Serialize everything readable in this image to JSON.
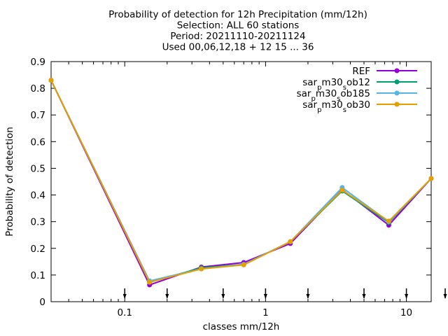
{
  "chart_data": {
    "type": "line",
    "title_lines": [
      "Probability of detection  for 12h Precipitation (mm/12h)",
      "Selection: ALL     60 stations",
      "Period: 20211110-20211124",
      "Used 00,06,12,18 + 12 15 ... 36"
    ],
    "xlabel": "classes mm/12h",
    "ylabel": "Probability of detection",
    "x_scale": "log",
    "xlim": [
      0.03,
      15
    ],
    "ylim": [
      0,
      0.9
    ],
    "x_ticks": [
      0.1,
      1,
      10
    ],
    "x_tick_labels": [
      "0.1",
      "1",
      "10"
    ],
    "y_ticks": [
      0,
      0.1,
      0.2,
      0.3,
      0.4,
      0.5,
      0.6,
      0.7,
      0.8,
      0.9
    ],
    "y_tick_labels": [
      "0",
      "0.1",
      "0.2",
      "0.3",
      "0.4",
      "0.5",
      "0.6",
      "0.7",
      "0.8",
      "0.9"
    ],
    "grid": false,
    "legend_position": "top-right",
    "x": [
      0.03,
      0.15,
      0.35,
      0.7,
      1.5,
      3.5,
      7.5,
      15
    ],
    "series": [
      {
        "name": "REF",
        "legend_parts": [
          {
            "t": "REF",
            "s": false
          }
        ],
        "color": "#9400d3",
        "marker": "circle",
        "values": [
          0.83,
          0.063,
          0.13,
          0.147,
          0.218,
          0.42,
          0.287,
          0.462
        ]
      },
      {
        "name": "sar_pm30_sob12",
        "legend_parts": [
          {
            "t": "sar",
            "s": false
          },
          {
            "t": "p",
            "s": true
          },
          {
            "t": "m30",
            "s": false
          },
          {
            "t": "s",
            "s": true
          },
          {
            "t": "ob12",
            "s": false
          }
        ],
        "color": "#009e73",
        "marker": "circle",
        "values": [
          0.83,
          0.073,
          0.127,
          0.14,
          0.225,
          0.415,
          0.297,
          0.462
        ]
      },
      {
        "name": "sar_pm30_sob185",
        "legend_parts": [
          {
            "t": "sar",
            "s": false
          },
          {
            "t": "p",
            "s": true
          },
          {
            "t": "m30",
            "s": false
          },
          {
            "t": "s",
            "s": true
          },
          {
            "t": "ob185",
            "s": false
          }
        ],
        "color": "#56b4e9",
        "marker": "circle",
        "values": [
          0.83,
          0.078,
          0.123,
          0.14,
          0.225,
          0.428,
          0.3,
          0.462
        ]
      },
      {
        "name": "sar_pm30_sob30",
        "legend_parts": [
          {
            "t": "sar",
            "s": false
          },
          {
            "t": "p",
            "s": true
          },
          {
            "t": "m30",
            "s": false
          },
          {
            "t": "s",
            "s": true
          },
          {
            "t": "ob30",
            "s": false
          }
        ],
        "color": "#e69f00",
        "marker": "circle",
        "values": [
          0.83,
          0.073,
          0.123,
          0.138,
          0.225,
          0.418,
          0.302,
          0.462
        ]
      }
    ],
    "class_markers_x": [
      0.1,
      0.2,
      0.5,
      1,
      2,
      5,
      10,
      20
    ]
  }
}
